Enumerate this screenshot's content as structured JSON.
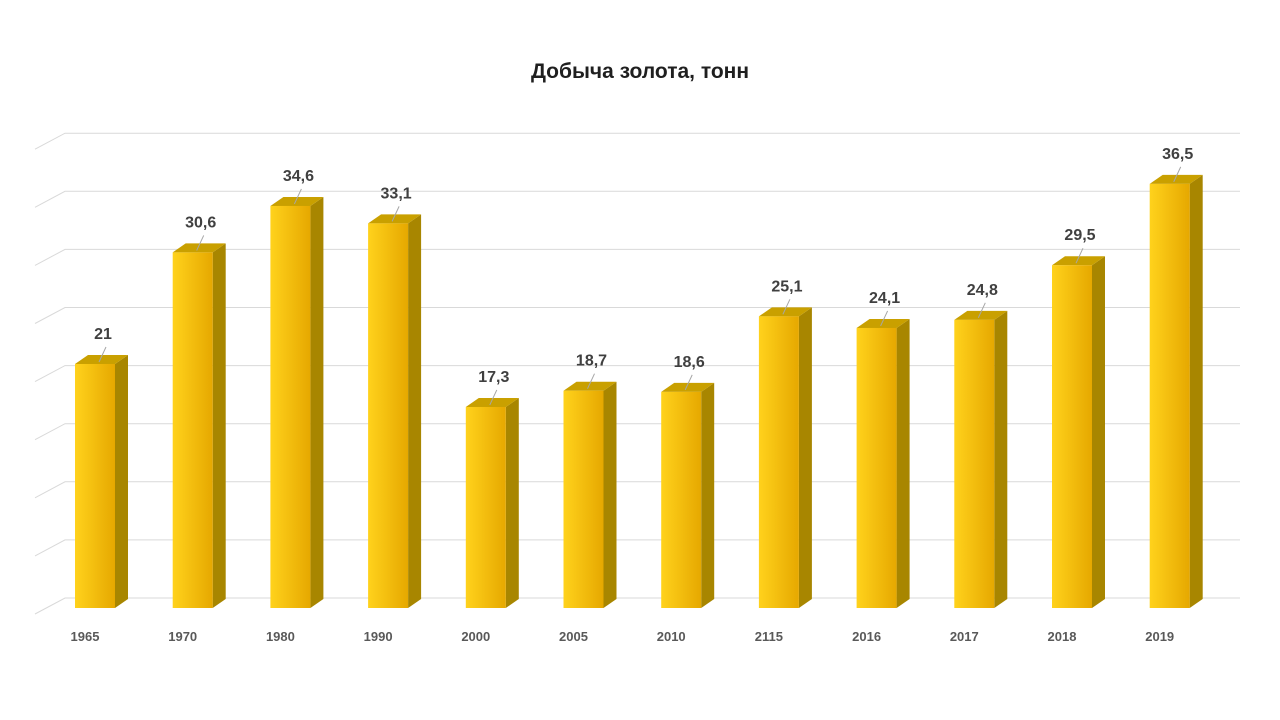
{
  "chart_data": {
    "type": "bar",
    "title": "Добыча золота, тонн",
    "xlabel": "",
    "ylabel": "",
    "categories": [
      "1965",
      "1970",
      "1980",
      "1990",
      "2000",
      "2005",
      "2010",
      "2115",
      "2016",
      "2017",
      "2018",
      "2019"
    ],
    "values": [
      21,
      30.6,
      34.6,
      33.1,
      17.3,
      18.7,
      18.6,
      25.1,
      24.1,
      24.8,
      29.5,
      36.5
    ],
    "value_labels": [
      "21",
      "30,6",
      "34,6",
      "33,1",
      "17,3",
      "18,7",
      "18,6",
      "25,1",
      "24,1",
      "24,8",
      "29,5",
      "36,5"
    ],
    "ylim": [
      0,
      40
    ],
    "grid": true,
    "legend": "none",
    "style": "3d-column",
    "colors": {
      "bar_front_light": "#FFD21C",
      "bar_front_dark": "#E6A800",
      "bar_side": "#A88600",
      "bar_top": "#C9A000",
      "grid": "#D9D9D9"
    }
  }
}
